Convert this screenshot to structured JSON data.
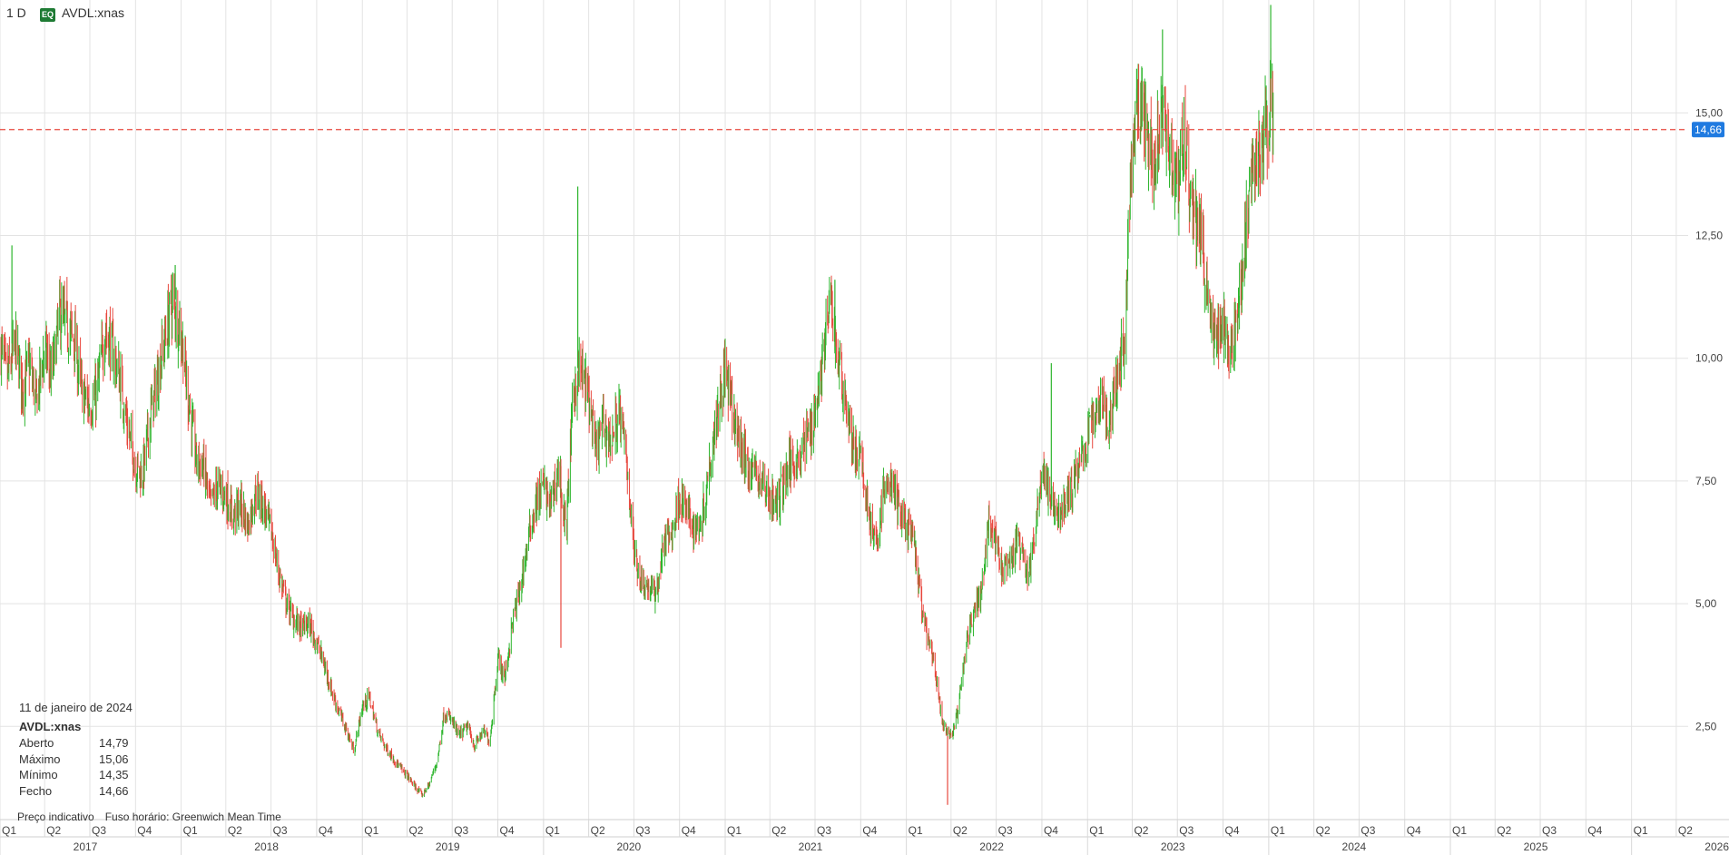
{
  "header": {
    "interval": "1 D",
    "badge": "EQ",
    "symbol": "AVDL:xnas"
  },
  "info_panel": {
    "date": "11 de janeiro de 2024",
    "symbol": "AVDL:xnas",
    "rows": [
      {
        "label": "Aberto",
        "value": "14,79"
      },
      {
        "label": "Máximo",
        "value": "15,06"
      },
      {
        "label": "Mínimo",
        "value": "14,35"
      },
      {
        "label": "Fecho",
        "value": "14,66"
      }
    ],
    "note_price": "Preço indicativo",
    "note_timezone": "Fuso horário: Greenwich Mean Time"
  },
  "colors": {
    "up": "#2db52d",
    "down": "#e8473d",
    "last_price_line": "#e8473d",
    "price_tag": "#1f7ae0",
    "grid": "#e3e3e3"
  },
  "chart_data": {
    "type": "candlestick",
    "y_axis_side": "right",
    "ylim": [
      0.6,
      17.3
    ],
    "y_ticks": [
      {
        "value": 2.5,
        "label": "2,50"
      },
      {
        "value": 5.0,
        "label": "5,00"
      },
      {
        "value": 7.5,
        "label": "7,50"
      },
      {
        "value": 10.0,
        "label": "10,00"
      },
      {
        "value": 12.5,
        "label": "12,50"
      },
      {
        "value": 15.0,
        "label": "15,00"
      }
    ],
    "last_price": {
      "value": 14.66,
      "label": "14,66"
    },
    "x_range": [
      "2017-01-01",
      "2026-04-25"
    ],
    "quarter_ticks": [
      {
        "date": "2017-01-01",
        "label": "Q1"
      },
      {
        "date": "2017-04-01",
        "label": "Q2"
      },
      {
        "date": "2017-07-01",
        "label": "Q3"
      },
      {
        "date": "2017-10-01",
        "label": "Q4"
      },
      {
        "date": "2018-01-01",
        "label": "Q1"
      },
      {
        "date": "2018-04-01",
        "label": "Q2"
      },
      {
        "date": "2018-07-01",
        "label": "Q3"
      },
      {
        "date": "2018-10-01",
        "label": "Q4"
      },
      {
        "date": "2019-01-01",
        "label": "Q1"
      },
      {
        "date": "2019-04-01",
        "label": "Q2"
      },
      {
        "date": "2019-07-01",
        "label": "Q3"
      },
      {
        "date": "2019-10-01",
        "label": "Q4"
      },
      {
        "date": "2020-01-01",
        "label": "Q1"
      },
      {
        "date": "2020-04-01",
        "label": "Q2"
      },
      {
        "date": "2020-07-01",
        "label": "Q3"
      },
      {
        "date": "2020-10-01",
        "label": "Q4"
      },
      {
        "date": "2021-01-01",
        "label": "Q1"
      },
      {
        "date": "2021-04-01",
        "label": "Q2"
      },
      {
        "date": "2021-07-01",
        "label": "Q3"
      },
      {
        "date": "2021-10-01",
        "label": "Q4"
      },
      {
        "date": "2022-01-01",
        "label": "Q1"
      },
      {
        "date": "2022-04-01",
        "label": "Q2"
      },
      {
        "date": "2022-07-01",
        "label": "Q3"
      },
      {
        "date": "2022-10-01",
        "label": "Q4"
      },
      {
        "date": "2023-01-01",
        "label": "Q1"
      },
      {
        "date": "2023-04-01",
        "label": "Q2"
      },
      {
        "date": "2023-07-01",
        "label": "Q3"
      },
      {
        "date": "2023-10-01",
        "label": "Q4"
      },
      {
        "date": "2024-01-01",
        "label": "Q1"
      },
      {
        "date": "2024-04-01",
        "label": "Q2"
      },
      {
        "date": "2024-07-01",
        "label": "Q3"
      },
      {
        "date": "2024-10-01",
        "label": "Q4"
      },
      {
        "date": "2025-01-01",
        "label": "Q1"
      },
      {
        "date": "2025-04-01",
        "label": "Q2"
      },
      {
        "date": "2025-07-01",
        "label": "Q3"
      },
      {
        "date": "2025-10-01",
        "label": "Q4"
      },
      {
        "date": "2026-01-01",
        "label": "Q1"
      },
      {
        "date": "2026-04-01",
        "label": "Q2"
      }
    ],
    "year_ticks": [
      {
        "date": "2017-01-01",
        "label": "2017"
      },
      {
        "date": "2018-01-01",
        "label": "2018"
      },
      {
        "date": "2019-01-01",
        "label": "2019"
      },
      {
        "date": "2020-01-01",
        "label": "2020"
      },
      {
        "date": "2021-01-01",
        "label": "2021"
      },
      {
        "date": "2022-01-01",
        "label": "2022"
      },
      {
        "date": "2023-01-01",
        "label": "2023"
      },
      {
        "date": "2024-01-01",
        "label": "2024"
      },
      {
        "date": "2025-01-01",
        "label": "2025"
      },
      {
        "date": "2026-01-01",
        "label": "2026"
      }
    ],
    "close_path": [
      [
        "2017-01-03",
        10.2
      ],
      [
        "2017-01-15",
        9.6
      ],
      [
        "2017-02-01",
        10.3
      ],
      [
        "2017-02-15",
        9.4
      ],
      [
        "2017-03-01",
        9.9
      ],
      [
        "2017-03-15",
        9.1
      ],
      [
        "2017-04-01",
        10.2
      ],
      [
        "2017-04-15",
        9.6
      ],
      [
        "2017-05-01",
        10.9
      ],
      [
        "2017-05-15",
        10.7
      ],
      [
        "2017-06-01",
        10.3
      ],
      [
        "2017-06-15",
        9.3
      ],
      [
        "2017-07-01",
        9.0
      ],
      [
        "2017-07-15",
        9.3
      ],
      [
        "2017-08-01",
        10.6
      ],
      [
        "2017-08-15",
        10.2
      ],
      [
        "2017-09-01",
        9.5
      ],
      [
        "2017-09-15",
        8.6
      ],
      [
        "2017-10-01",
        7.8
      ],
      [
        "2017-10-15",
        7.6
      ],
      [
        "2017-11-01",
        8.9
      ],
      [
        "2017-11-15",
        9.6
      ],
      [
        "2017-12-01",
        10.5
      ],
      [
        "2017-12-15",
        11.2
      ],
      [
        "2018-01-01",
        10.5
      ],
      [
        "2018-01-15",
        9.2
      ],
      [
        "2018-02-01",
        7.9
      ],
      [
        "2018-02-15",
        7.8
      ],
      [
        "2018-03-01",
        7.0
      ],
      [
        "2018-03-15",
        7.4
      ],
      [
        "2018-04-01",
        7.2
      ],
      [
        "2018-04-15",
        6.8
      ],
      [
        "2018-05-01",
        7.0
      ],
      [
        "2018-05-15",
        6.6
      ],
      [
        "2018-06-01",
        7.3
      ],
      [
        "2018-06-15",
        7.0
      ],
      [
        "2018-07-01",
        6.5
      ],
      [
        "2018-07-15",
        5.7
      ],
      [
        "2018-08-01",
        5.0
      ],
      [
        "2018-08-15",
        4.7
      ],
      [
        "2018-09-01",
        4.5
      ],
      [
        "2018-09-15",
        4.6
      ],
      [
        "2018-10-01",
        4.2
      ],
      [
        "2018-10-15",
        3.8
      ],
      [
        "2018-11-01",
        3.2
      ],
      [
        "2018-11-15",
        2.8
      ],
      [
        "2018-12-01",
        2.4
      ],
      [
        "2018-12-15",
        2.0
      ],
      [
        "2019-01-01",
        2.9
      ],
      [
        "2019-01-15",
        3.1
      ],
      [
        "2019-02-01",
        2.4
      ],
      [
        "2019-02-15",
        2.1
      ],
      [
        "2019-03-01",
        1.9
      ],
      [
        "2019-03-15",
        1.7
      ],
      [
        "2019-04-01",
        1.5
      ],
      [
        "2019-04-15",
        1.3
      ],
      [
        "2019-05-01",
        1.1
      ],
      [
        "2019-05-15",
        1.3
      ],
      [
        "2019-06-01",
        1.8
      ],
      [
        "2019-06-15",
        2.8
      ],
      [
        "2019-07-01",
        2.6
      ],
      [
        "2019-07-15",
        2.3
      ],
      [
        "2019-08-01",
        2.5
      ],
      [
        "2019-08-15",
        2.1
      ],
      [
        "2019-09-01",
        2.4
      ],
      [
        "2019-09-15",
        2.2
      ],
      [
        "2019-10-01",
        3.9
      ],
      [
        "2019-10-15",
        3.5
      ],
      [
        "2019-11-01",
        4.7
      ],
      [
        "2019-11-15",
        5.3
      ],
      [
        "2019-12-01",
        6.3
      ],
      [
        "2019-12-15",
        7.0
      ],
      [
        "2020-01-01",
        7.4
      ],
      [
        "2020-01-15",
        7.0
      ],
      [
        "2020-02-01",
        7.8
      ],
      [
        "2020-02-15",
        6.4
      ],
      [
        "2020-03-01",
        9.3
      ],
      [
        "2020-03-15",
        9.8
      ],
      [
        "2020-04-01",
        9.2
      ],
      [
        "2020-04-15",
        8.1
      ],
      [
        "2020-05-01",
        8.7
      ],
      [
        "2020-05-15",
        8.3
      ],
      [
        "2020-06-01",
        8.9
      ],
      [
        "2020-06-15",
        8.1
      ],
      [
        "2020-07-01",
        6.1
      ],
      [
        "2020-07-15",
        5.5
      ],
      [
        "2020-08-01",
        5.3
      ],
      [
        "2020-08-15",
        5.2
      ],
      [
        "2020-09-01",
        6.3
      ],
      [
        "2020-09-15",
        6.4
      ],
      [
        "2020-10-01",
        7.2
      ],
      [
        "2020-10-15",
        6.9
      ],
      [
        "2020-11-01",
        6.5
      ],
      [
        "2020-11-15",
        6.7
      ],
      [
        "2020-12-01",
        7.9
      ],
      [
        "2020-12-15",
        8.9
      ],
      [
        "2021-01-01",
        9.8
      ],
      [
        "2021-01-15",
        8.9
      ],
      [
        "2021-02-01",
        8.2
      ],
      [
        "2021-02-15",
        7.8
      ],
      [
        "2021-03-01",
        7.7
      ],
      [
        "2021-03-15",
        7.5
      ],
      [
        "2021-04-01",
        7.2
      ],
      [
        "2021-04-15",
        7.0
      ],
      [
        "2021-05-01",
        7.6
      ],
      [
        "2021-05-15",
        7.9
      ],
      [
        "2021-06-01",
        8.0
      ],
      [
        "2021-06-15",
        8.4
      ],
      [
        "2021-07-01",
        8.9
      ],
      [
        "2021-07-15",
        9.9
      ],
      [
        "2021-08-01",
        11.2
      ],
      [
        "2021-08-15",
        10.1
      ],
      [
        "2021-09-01",
        9.1
      ],
      [
        "2021-09-15",
        8.2
      ],
      [
        "2021-10-01",
        7.9
      ],
      [
        "2021-10-15",
        7.0
      ],
      [
        "2021-11-01",
        6.1
      ],
      [
        "2021-11-15",
        7.2
      ],
      [
        "2021-12-01",
        7.5
      ],
      [
        "2021-12-15",
        7.0
      ],
      [
        "2022-01-01",
        6.6
      ],
      [
        "2022-01-15",
        6.3
      ],
      [
        "2022-02-01",
        4.9
      ],
      [
        "2022-02-15",
        4.2
      ],
      [
        "2022-03-01",
        3.6
      ],
      [
        "2022-03-15",
        2.5
      ],
      [
        "2022-04-01",
        2.3
      ],
      [
        "2022-04-15",
        2.8
      ],
      [
        "2022-05-01",
        4.1
      ],
      [
        "2022-05-15",
        4.9
      ],
      [
        "2022-06-01",
        5.2
      ],
      [
        "2022-06-15",
        6.7
      ],
      [
        "2022-07-01",
        6.2
      ],
      [
        "2022-07-15",
        5.6
      ],
      [
        "2022-08-01",
        5.9
      ],
      [
        "2022-08-15",
        6.3
      ],
      [
        "2022-09-01",
        5.6
      ],
      [
        "2022-09-15",
        6.2
      ],
      [
        "2022-10-01",
        7.8
      ],
      [
        "2022-10-15",
        7.2
      ],
      [
        "2022-11-01",
        6.8
      ],
      [
        "2022-11-15",
        7.0
      ],
      [
        "2022-12-01",
        7.4
      ],
      [
        "2022-12-15",
        7.8
      ],
      [
        "2023-01-01",
        8.4
      ],
      [
        "2023-01-15",
        8.9
      ],
      [
        "2023-02-01",
        9.2
      ],
      [
        "2023-02-15",
        8.6
      ],
      [
        "2023-03-01",
        9.6
      ],
      [
        "2023-03-15",
        10.3
      ],
      [
        "2023-04-01",
        14.3
      ],
      [
        "2023-04-15",
        15.2
      ],
      [
        "2023-05-01",
        14.6
      ],
      [
        "2023-05-15",
        13.9
      ],
      [
        "2023-06-01",
        15.3
      ],
      [
        "2023-06-15",
        14.3
      ],
      [
        "2023-07-01",
        13.6
      ],
      [
        "2023-07-15",
        14.5
      ],
      [
        "2023-08-01",
        13.0
      ],
      [
        "2023-08-15",
        12.6
      ],
      [
        "2023-09-01",
        11.2
      ],
      [
        "2023-09-15",
        10.4
      ],
      [
        "2023-10-01",
        10.7
      ],
      [
        "2023-10-15",
        10.1
      ],
      [
        "2023-11-01",
        11.0
      ],
      [
        "2023-11-15",
        12.6
      ],
      [
        "2023-12-01",
        13.8
      ],
      [
        "2023-12-15",
        14.3
      ],
      [
        "2024-01-02",
        14.9
      ],
      [
        "2024-01-05",
        15.7
      ],
      [
        "2024-01-08",
        15.2
      ],
      [
        "2024-01-11",
        14.66
      ]
    ],
    "spikes": [
      [
        "2017-01-25",
        12.3
      ],
      [
        "2017-12-20",
        11.9
      ],
      [
        "2020-03-10",
        13.5
      ],
      [
        "2020-02-05",
        4.1
      ],
      [
        "2021-08-10",
        11.6
      ],
      [
        "2022-03-25",
        0.9
      ],
      [
        "2023-06-01",
        16.7
      ],
      [
        "2023-04-10",
        15.9
      ],
      [
        "2024-01-05",
        17.2
      ],
      [
        "2022-10-20",
        9.9
      ]
    ]
  }
}
